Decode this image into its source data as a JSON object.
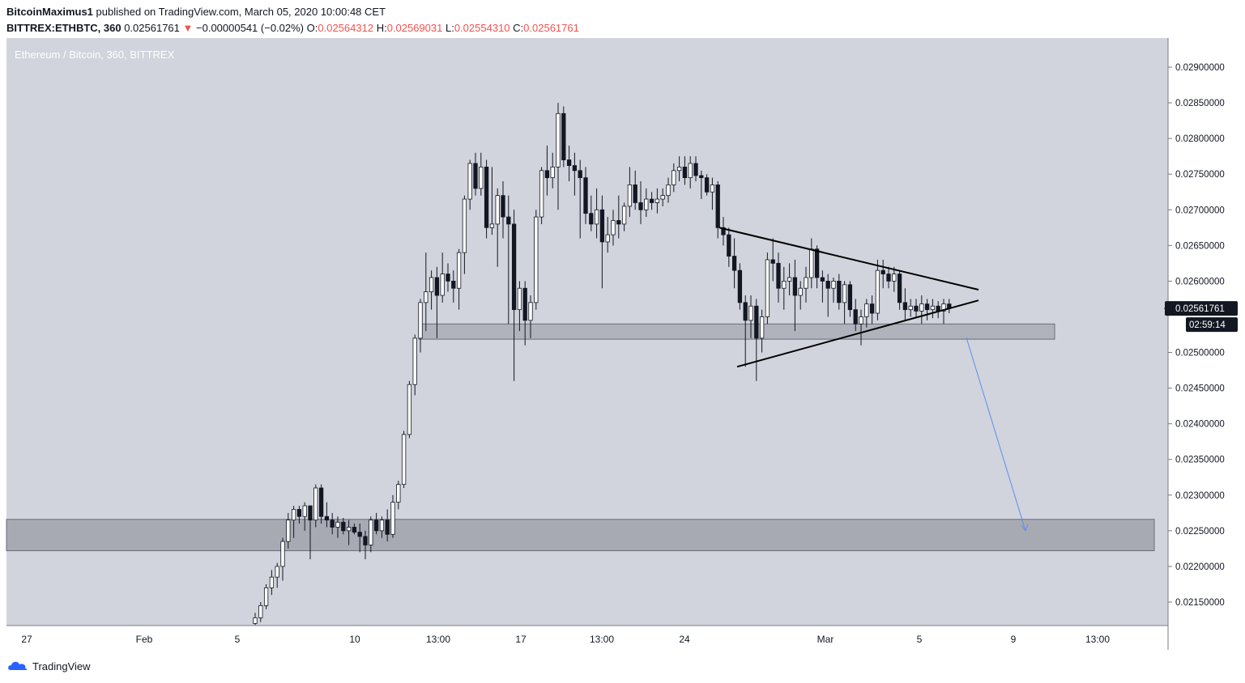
{
  "header": {
    "publisher": "BitcoinMaximus1",
    "published_text": "published on TradingView.com, March 05, 2020 10:00:48 CET",
    "symbol": "BITTREX:ETHBTC, 360",
    "last": "0.02561761",
    "change_arrow": "▼",
    "change": "−0.00000541 (−0.02%)",
    "o_label": "O:",
    "o_value": "0.02564312",
    "h_label": "H:",
    "h_value": "0.02569031",
    "l_label": "L:",
    "l_value": "0.02554310",
    "c_label": "C:",
    "c_value": "0.02561761"
  },
  "footer": {
    "brand": "TradingView"
  },
  "colors": {
    "pane_bg": "#d1d4dc",
    "axis_bg": "#ffffff",
    "candle_up": "#ffffff",
    "candle_down": "#131722",
    "zone_fill": "#9598a1",
    "arrow": "#5b8def",
    "trendline": "#000000",
    "price_tag_bg": "#131722"
  },
  "chart_data": {
    "type": "candlestick",
    "title": "Ethereum / Bitcoin, 360, BITTREX",
    "y_ticks": [
      "0.02900000",
      "0.02850000",
      "0.02800000",
      "0.02750000",
      "0.02700000",
      "0.02650000",
      "0.02600000",
      "0.02500000",
      "0.02450000",
      "0.02400000",
      "0.02350000",
      "0.02300000",
      "0.02250000",
      "0.02200000",
      "0.02150000"
    ],
    "x_ticks": [
      "27",
      "Feb",
      "5",
      "10",
      "13:00",
      "17",
      "13:00",
      "24",
      "Mar",
      "5",
      "9",
      "13:00"
    ],
    "current_price": "0.02561761",
    "countdown": "02:59:14",
    "ylim": [
      0.0212,
      0.0292
    ],
    "candles": [
      [
        0.0212,
        0.02135,
        0.02118,
        0.02128
      ],
      [
        0.02128,
        0.0215,
        0.02122,
        0.02145
      ],
      [
        0.02145,
        0.02175,
        0.0214,
        0.0217
      ],
      [
        0.0217,
        0.02195,
        0.0216,
        0.02185
      ],
      [
        0.02185,
        0.02205,
        0.0217,
        0.022
      ],
      [
        0.022,
        0.0224,
        0.0218,
        0.02235
      ],
      [
        0.02235,
        0.02275,
        0.02225,
        0.02265
      ],
      [
        0.02265,
        0.02285,
        0.0224,
        0.0228
      ],
      [
        0.0228,
        0.02285,
        0.0226,
        0.0227
      ],
      [
        0.0227,
        0.0229,
        0.0225,
        0.02285
      ],
      [
        0.02285,
        0.02285,
        0.0221,
        0.02265
      ],
      [
        0.02265,
        0.02315,
        0.02255,
        0.0231
      ],
      [
        0.0231,
        0.02315,
        0.0226,
        0.0227
      ],
      [
        0.0227,
        0.0229,
        0.02255,
        0.02265
      ],
      [
        0.02265,
        0.02275,
        0.02245,
        0.02255
      ],
      [
        0.02255,
        0.0227,
        0.0224,
        0.02262
      ],
      [
        0.02262,
        0.02268,
        0.02245,
        0.0225
      ],
      [
        0.0225,
        0.02265,
        0.0223,
        0.02255
      ],
      [
        0.02255,
        0.0226,
        0.02245,
        0.02248
      ],
      [
        0.02248,
        0.0226,
        0.0222,
        0.02242
      ],
      [
        0.02242,
        0.0225,
        0.0221,
        0.0223
      ],
      [
        0.0223,
        0.0227,
        0.0222,
        0.02265
      ],
      [
        0.02265,
        0.02275,
        0.02245,
        0.0225
      ],
      [
        0.0225,
        0.0227,
        0.0224,
        0.02265
      ],
      [
        0.02265,
        0.0228,
        0.02235,
        0.02245
      ],
      [
        0.02245,
        0.023,
        0.0224,
        0.0229
      ],
      [
        0.0229,
        0.0232,
        0.0228,
        0.02315
      ],
      [
        0.02315,
        0.0239,
        0.0231,
        0.02385
      ],
      [
        0.02385,
        0.0246,
        0.0238,
        0.02455
      ],
      [
        0.02455,
        0.02525,
        0.0244,
        0.0252
      ],
      [
        0.0252,
        0.02575,
        0.025,
        0.0257
      ],
      [
        0.0257,
        0.0264,
        0.0253,
        0.02585
      ],
      [
        0.02585,
        0.02615,
        0.0256,
        0.02605
      ],
      [
        0.02605,
        0.0262,
        0.0252,
        0.0258
      ],
      [
        0.0258,
        0.0264,
        0.0257,
        0.0261
      ],
      [
        0.0261,
        0.02625,
        0.02585,
        0.026
      ],
      [
        0.026,
        0.02615,
        0.0257,
        0.0259
      ],
      [
        0.0259,
        0.02645,
        0.0256,
        0.0264
      ],
      [
        0.0264,
        0.0272,
        0.0261,
        0.02715
      ],
      [
        0.02715,
        0.0277,
        0.027,
        0.02765
      ],
      [
        0.02765,
        0.0278,
        0.0272,
        0.0273
      ],
      [
        0.0273,
        0.0278,
        0.0272,
        0.0276
      ],
      [
        0.0276,
        0.0277,
        0.0266,
        0.02675
      ],
      [
        0.02675,
        0.0276,
        0.02665,
        0.0268
      ],
      [
        0.0268,
        0.0273,
        0.0262,
        0.0272
      ],
      [
        0.0272,
        0.0274,
        0.0266,
        0.0269
      ],
      [
        0.0269,
        0.0272,
        0.0254,
        0.0268
      ],
      [
        0.0268,
        0.027,
        0.0246,
        0.0256
      ],
      [
        0.0256,
        0.026,
        0.0253,
        0.0259
      ],
      [
        0.0259,
        0.026,
        0.0251,
        0.02545
      ],
      [
        0.02545,
        0.0258,
        0.0252,
        0.0257
      ],
      [
        0.0257,
        0.027,
        0.0256,
        0.0269
      ],
      [
        0.0269,
        0.0276,
        0.0268,
        0.02755
      ],
      [
        0.02755,
        0.0279,
        0.0272,
        0.02745
      ],
      [
        0.02745,
        0.0278,
        0.0273,
        0.0276
      ],
      [
        0.0276,
        0.0285,
        0.027,
        0.02835
      ],
      [
        0.02835,
        0.02845,
        0.0276,
        0.0277
      ],
      [
        0.0277,
        0.0279,
        0.0274,
        0.02762
      ],
      [
        0.02762,
        0.0278,
        0.0272,
        0.02755
      ],
      [
        0.02755,
        0.0277,
        0.0266,
        0.02745
      ],
      [
        0.02745,
        0.0276,
        0.0268,
        0.02695
      ],
      [
        0.02695,
        0.0272,
        0.0267,
        0.0268
      ],
      [
        0.0268,
        0.0273,
        0.0266,
        0.027
      ],
      [
        0.027,
        0.0272,
        0.0259,
        0.02655
      ],
      [
        0.02655,
        0.0269,
        0.0264,
        0.02665
      ],
      [
        0.02665,
        0.027,
        0.0265,
        0.02685
      ],
      [
        0.02685,
        0.0272,
        0.0266,
        0.0268
      ],
      [
        0.0268,
        0.0271,
        0.0267,
        0.02705
      ],
      [
        0.02705,
        0.0276,
        0.0269,
        0.02735
      ],
      [
        0.02735,
        0.02755,
        0.027,
        0.0271
      ],
      [
        0.0271,
        0.0274,
        0.0268,
        0.027
      ],
      [
        0.027,
        0.0273,
        0.0269,
        0.02715
      ],
      [
        0.02715,
        0.02725,
        0.027,
        0.0271
      ],
      [
        0.0271,
        0.0273,
        0.02695,
        0.02715
      ],
      [
        0.02715,
        0.0273,
        0.02705,
        0.0272
      ],
      [
        0.0272,
        0.02745,
        0.0271,
        0.02735
      ],
      [
        0.02735,
        0.02765,
        0.02725,
        0.02755
      ],
      [
        0.02755,
        0.02775,
        0.0274,
        0.0276
      ],
      [
        0.0276,
        0.02775,
        0.02735,
        0.02745
      ],
      [
        0.02745,
        0.02775,
        0.0273,
        0.02765
      ],
      [
        0.02765,
        0.02775,
        0.0274,
        0.02748
      ],
      [
        0.02748,
        0.02755,
        0.02715,
        0.02745
      ],
      [
        0.02745,
        0.0275,
        0.0272,
        0.02725
      ],
      [
        0.02725,
        0.02745,
        0.027,
        0.02735
      ],
      [
        0.02735,
        0.0274,
        0.0266,
        0.02675
      ],
      [
        0.02675,
        0.0269,
        0.0265,
        0.02665
      ],
      [
        0.02665,
        0.02675,
        0.0262,
        0.02635
      ],
      [
        0.02635,
        0.0266,
        0.0259,
        0.02615
      ],
      [
        0.02615,
        0.02625,
        0.0256,
        0.0257
      ],
      [
        0.0257,
        0.0258,
        0.0248,
        0.02545
      ],
      [
        0.02545,
        0.0258,
        0.0252,
        0.02565
      ],
      [
        0.02565,
        0.02575,
        0.0246,
        0.0252
      ],
      [
        0.0252,
        0.0256,
        0.025,
        0.0255
      ],
      [
        0.0255,
        0.0264,
        0.0254,
        0.0263
      ],
      [
        0.0263,
        0.0266,
        0.026,
        0.02625
      ],
      [
        0.02625,
        0.0264,
        0.0257,
        0.0259
      ],
      [
        0.0259,
        0.0262,
        0.0256,
        0.026
      ],
      [
        0.026,
        0.02625,
        0.0258,
        0.02605
      ],
      [
        0.02605,
        0.0263,
        0.0253,
        0.0258
      ],
      [
        0.0258,
        0.026,
        0.0256,
        0.0259
      ],
      [
        0.0259,
        0.0262,
        0.0257,
        0.02605
      ],
      [
        0.02605,
        0.0266,
        0.0259,
        0.02645
      ],
      [
        0.02645,
        0.0265,
        0.0259,
        0.02605
      ],
      [
        0.02605,
        0.02615,
        0.0257,
        0.026
      ],
      [
        0.026,
        0.0261,
        0.0255,
        0.0259
      ],
      [
        0.0259,
        0.02605,
        0.0257,
        0.026
      ],
      [
        0.026,
        0.0261,
        0.0256,
        0.0257
      ],
      [
        0.0257,
        0.026,
        0.0254,
        0.02595
      ],
      [
        0.02595,
        0.026,
        0.0255,
        0.0256
      ],
      [
        0.0256,
        0.02575,
        0.0253,
        0.0254
      ],
      [
        0.0254,
        0.0256,
        0.0251,
        0.0255
      ],
      [
        0.0255,
        0.02575,
        0.02535,
        0.02568
      ],
      [
        0.02568,
        0.0258,
        0.0254,
        0.02555
      ],
      [
        0.02555,
        0.0263,
        0.02545,
        0.02615
      ],
      [
        0.02615,
        0.0263,
        0.0259,
        0.0261
      ],
      [
        0.0261,
        0.0262,
        0.0259,
        0.026
      ],
      [
        0.026,
        0.0262,
        0.02585,
        0.0261
      ],
      [
        0.0261,
        0.02615,
        0.0256,
        0.0257
      ],
      [
        0.0257,
        0.0259,
        0.02545,
        0.0256
      ],
      [
        0.0256,
        0.02575,
        0.0255,
        0.02565
      ],
      [
        0.02565,
        0.02575,
        0.0255,
        0.02558
      ],
      [
        0.02558,
        0.0258,
        0.0254,
        0.02568
      ],
      [
        0.02568,
        0.02575,
        0.02545,
        0.0256
      ],
      [
        0.0256,
        0.02575,
        0.02548,
        0.02565
      ],
      [
        0.02565,
        0.02572,
        0.02548,
        0.02558
      ],
      [
        0.02558,
        0.02575,
        0.0254,
        0.02568
      ],
      [
        0.02568,
        0.02575,
        0.02555,
        0.02562
      ]
    ],
    "support_zones": [
      [
        0.02522,
        0.02532
      ],
      [
        0.02222,
        0.02266
      ]
    ],
    "triangle_upper": [
      [
        0.02675,
        0.02588
      ]
    ],
    "triangle_lower": [
      [
        0.0248,
        0.02573
      ]
    ],
    "projection": {
      "from": 0.0253,
      "to": 0.0225
    }
  }
}
